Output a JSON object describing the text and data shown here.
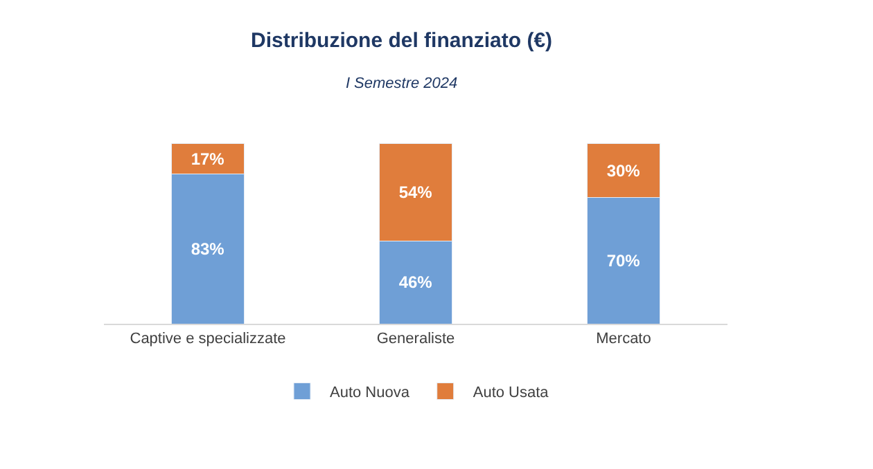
{
  "chart_data": {
    "type": "bar",
    "title": "Distribuzione del finanziato (€)",
    "subtitle": "I Semestre 2024",
    "categories": [
      "Captive e specializzate",
      "Generaliste",
      "Mercato"
    ],
    "stacked": true,
    "series": [
      {
        "name": "Auto Nuova",
        "color": "#6f9fd6",
        "values": [
          83,
          46,
          70
        ],
        "value_labels": [
          "83%",
          "46%",
          "70%"
        ]
      },
      {
        "name": "Auto Usata",
        "color": "#e07d3c",
        "values": [
          17,
          54,
          30
        ],
        "value_labels": [
          "17%",
          "54%",
          "30%"
        ]
      }
    ],
    "legend": "bottom"
  }
}
